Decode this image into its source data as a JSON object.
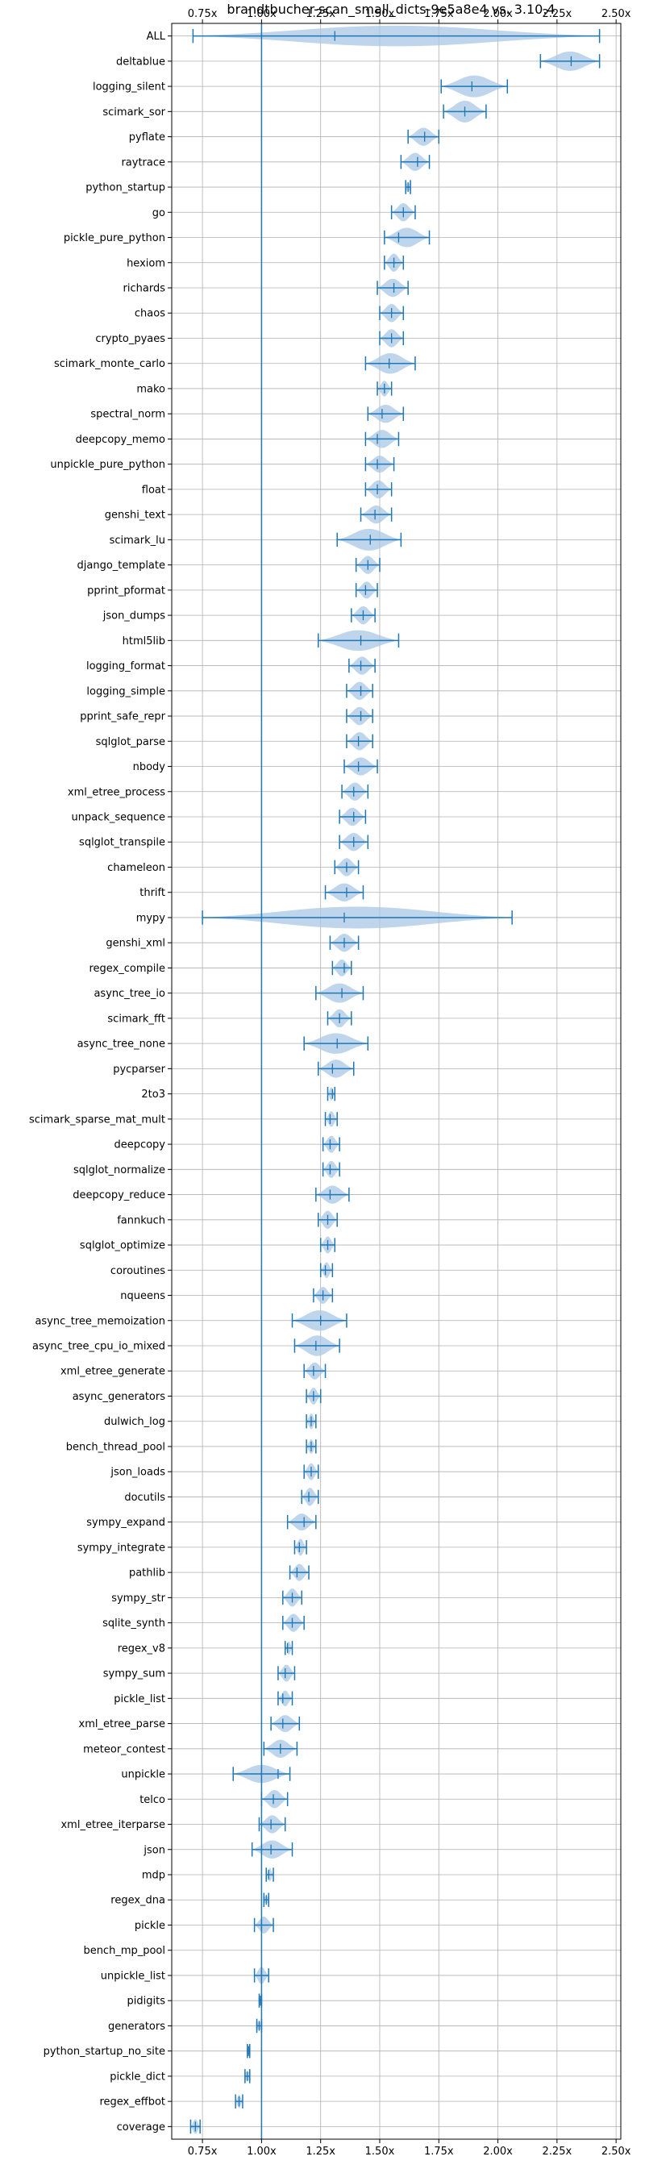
{
  "chart_data": {
    "type": "violin",
    "title": "brandtbucher-scan_small_dicts-9e5a8e4 vs. 3.10.4",
    "xlabel": "",
    "ylabel": "",
    "xlim": [
      0.62,
      2.52
    ],
    "x_ticks": [
      0.75,
      1.0,
      1.25,
      1.5,
      1.75,
      2.0,
      2.25,
      2.5
    ],
    "x_tick_labels": [
      "0.75x",
      "1.00x",
      "1.25x",
      "1.50x",
      "1.75x",
      "2.00x",
      "2.25x",
      "2.50x"
    ],
    "x_ticks_on_top_and_bottom": true,
    "reference_line": 1.0,
    "grid": true,
    "colors": {
      "body": "#a9c7e4",
      "line": "#1f77b4",
      "grid": "#b0b0b0"
    },
    "benchmarks": [
      {
        "name": "ALL",
        "min": 0.71,
        "median": 1.31,
        "max": 2.43,
        "width": 0.85
      },
      {
        "name": "deltablue",
        "min": 2.18,
        "median": 2.31,
        "max": 2.43,
        "width": 0.8
      },
      {
        "name": "logging_silent",
        "min": 1.76,
        "median": 1.89,
        "max": 2.04,
        "width": 0.9
      },
      {
        "name": "scimark_sor",
        "min": 1.77,
        "median": 1.86,
        "max": 1.95,
        "width": 0.9
      },
      {
        "name": "pyflate",
        "min": 1.62,
        "median": 1.69,
        "max": 1.75,
        "width": 0.75
      },
      {
        "name": "raytrace",
        "min": 1.59,
        "median": 1.66,
        "max": 1.71,
        "width": 0.75
      },
      {
        "name": "python_startup",
        "min": 1.61,
        "median": 1.62,
        "max": 1.63,
        "width": 0.5
      },
      {
        "name": "go",
        "min": 1.55,
        "median": 1.6,
        "max": 1.65,
        "width": 0.75
      },
      {
        "name": "pickle_pure_python",
        "min": 1.52,
        "median": 1.58,
        "max": 1.71,
        "width": 0.8
      },
      {
        "name": "hexiom",
        "min": 1.52,
        "median": 1.56,
        "max": 1.6,
        "width": 0.75
      },
      {
        "name": "richards",
        "min": 1.49,
        "median": 1.56,
        "max": 1.62,
        "width": 0.75
      },
      {
        "name": "chaos",
        "min": 1.5,
        "median": 1.55,
        "max": 1.6,
        "width": 0.75
      },
      {
        "name": "crypto_pyaes",
        "min": 1.5,
        "median": 1.55,
        "max": 1.6,
        "width": 0.75
      },
      {
        "name": "scimark_monte_carlo",
        "min": 1.44,
        "median": 1.54,
        "max": 1.65,
        "width": 0.85
      },
      {
        "name": "mako",
        "min": 1.49,
        "median": 1.52,
        "max": 1.55,
        "width": 0.65
      },
      {
        "name": "spectral_norm",
        "min": 1.45,
        "median": 1.51,
        "max": 1.6,
        "width": 0.75
      },
      {
        "name": "deepcopy_memo",
        "min": 1.44,
        "median": 1.49,
        "max": 1.58,
        "width": 0.75
      },
      {
        "name": "unpickle_pure_python",
        "min": 1.44,
        "median": 1.49,
        "max": 1.56,
        "width": 0.7
      },
      {
        "name": "float",
        "min": 1.44,
        "median": 1.49,
        "max": 1.55,
        "width": 0.75
      },
      {
        "name": "genshi_text",
        "min": 1.42,
        "median": 1.48,
        "max": 1.55,
        "width": 0.75
      },
      {
        "name": "scimark_lu",
        "min": 1.32,
        "median": 1.46,
        "max": 1.59,
        "width": 0.9
      },
      {
        "name": "django_template",
        "min": 1.4,
        "median": 1.45,
        "max": 1.5,
        "width": 0.75
      },
      {
        "name": "pprint_pformat",
        "min": 1.4,
        "median": 1.44,
        "max": 1.49,
        "width": 0.7
      },
      {
        "name": "json_dumps",
        "min": 1.38,
        "median": 1.43,
        "max": 1.48,
        "width": 0.75
      },
      {
        "name": "html5lib",
        "min": 1.24,
        "median": 1.42,
        "max": 1.58,
        "width": 0.85
      },
      {
        "name": "logging_format",
        "min": 1.37,
        "median": 1.42,
        "max": 1.48,
        "width": 0.75
      },
      {
        "name": "logging_simple",
        "min": 1.36,
        "median": 1.42,
        "max": 1.47,
        "width": 0.75
      },
      {
        "name": "pprint_safe_repr",
        "min": 1.36,
        "median": 1.42,
        "max": 1.47,
        "width": 0.75
      },
      {
        "name": "sqlglot_parse",
        "min": 1.36,
        "median": 1.41,
        "max": 1.47,
        "width": 0.75
      },
      {
        "name": "nbody",
        "min": 1.35,
        "median": 1.41,
        "max": 1.49,
        "width": 0.75
      },
      {
        "name": "xml_etree_process",
        "min": 1.34,
        "median": 1.39,
        "max": 1.45,
        "width": 0.75
      },
      {
        "name": "unpack_sequence",
        "min": 1.33,
        "median": 1.39,
        "max": 1.44,
        "width": 0.75
      },
      {
        "name": "sqlglot_transpile",
        "min": 1.33,
        "median": 1.39,
        "max": 1.45,
        "width": 0.75
      },
      {
        "name": "chameleon",
        "min": 1.31,
        "median": 1.36,
        "max": 1.41,
        "width": 0.75
      },
      {
        "name": "thrift",
        "min": 1.27,
        "median": 1.36,
        "max": 1.43,
        "width": 0.75
      },
      {
        "name": "mypy",
        "min": 0.75,
        "median": 1.35,
        "max": 2.06,
        "width": 0.9
      },
      {
        "name": "genshi_xml",
        "min": 1.29,
        "median": 1.35,
        "max": 1.41,
        "width": 0.75
      },
      {
        "name": "regex_compile",
        "min": 1.3,
        "median": 1.35,
        "max": 1.38,
        "width": 0.7
      },
      {
        "name": "async_tree_io",
        "min": 1.23,
        "median": 1.34,
        "max": 1.43,
        "width": 0.8
      },
      {
        "name": "scimark_fft",
        "min": 1.28,
        "median": 1.33,
        "max": 1.38,
        "width": 0.75
      },
      {
        "name": "async_tree_none",
        "min": 1.18,
        "median": 1.32,
        "max": 1.45,
        "width": 0.85
      },
      {
        "name": "pycparser",
        "min": 1.24,
        "median": 1.3,
        "max": 1.39,
        "width": 0.75
      },
      {
        "name": "2to3",
        "min": 1.28,
        "median": 1.3,
        "max": 1.31,
        "width": 0.55
      },
      {
        "name": "scimark_sparse_mat_mult",
        "min": 1.27,
        "median": 1.29,
        "max": 1.32,
        "width": 0.65
      },
      {
        "name": "deepcopy",
        "min": 1.26,
        "median": 1.29,
        "max": 1.33,
        "width": 0.7
      },
      {
        "name": "sqlglot_normalize",
        "min": 1.26,
        "median": 1.29,
        "max": 1.33,
        "width": 0.7
      },
      {
        "name": "deepcopy_reduce",
        "min": 1.23,
        "median": 1.29,
        "max": 1.37,
        "width": 0.75
      },
      {
        "name": "fannkuch",
        "min": 1.24,
        "median": 1.28,
        "max": 1.32,
        "width": 0.75
      },
      {
        "name": "sqlglot_optimize",
        "min": 1.25,
        "median": 1.28,
        "max": 1.31,
        "width": 0.7
      },
      {
        "name": "coroutines",
        "min": 1.25,
        "median": 1.27,
        "max": 1.3,
        "width": 0.65
      },
      {
        "name": "nqueens",
        "min": 1.22,
        "median": 1.26,
        "max": 1.3,
        "width": 0.7
      },
      {
        "name": "async_tree_memoization",
        "min": 1.13,
        "median": 1.25,
        "max": 1.36,
        "width": 0.85
      },
      {
        "name": "async_tree_cpu_io_mixed",
        "min": 1.14,
        "median": 1.23,
        "max": 1.33,
        "width": 0.85
      },
      {
        "name": "xml_etree_generate",
        "min": 1.18,
        "median": 1.22,
        "max": 1.27,
        "width": 0.7
      },
      {
        "name": "async_generators",
        "min": 1.19,
        "median": 1.22,
        "max": 1.25,
        "width": 0.7
      },
      {
        "name": "dulwich_log",
        "min": 1.19,
        "median": 1.21,
        "max": 1.23,
        "width": 0.65
      },
      {
        "name": "bench_thread_pool",
        "min": 1.19,
        "median": 1.21,
        "max": 1.23,
        "width": 0.6
      },
      {
        "name": "json_loads",
        "min": 1.18,
        "median": 1.21,
        "max": 1.24,
        "width": 0.7
      },
      {
        "name": "docutils",
        "min": 1.17,
        "median": 1.2,
        "max": 1.24,
        "width": 0.75
      },
      {
        "name": "sympy_expand",
        "min": 1.11,
        "median": 1.18,
        "max": 1.23,
        "width": 0.7
      },
      {
        "name": "sympy_integrate",
        "min": 1.14,
        "median": 1.16,
        "max": 1.19,
        "width": 0.7
      },
      {
        "name": "pathlib",
        "min": 1.12,
        "median": 1.15,
        "max": 1.2,
        "width": 0.7
      },
      {
        "name": "sympy_str",
        "min": 1.09,
        "median": 1.13,
        "max": 1.17,
        "width": 0.75
      },
      {
        "name": "sqlite_synth",
        "min": 1.09,
        "median": 1.13,
        "max": 1.18,
        "width": 0.75
      },
      {
        "name": "regex_v8",
        "min": 1.1,
        "median": 1.11,
        "max": 1.13,
        "width": 0.55
      },
      {
        "name": "sympy_sum",
        "min": 1.07,
        "median": 1.1,
        "max": 1.14,
        "width": 0.7
      },
      {
        "name": "pickle_list",
        "min": 1.07,
        "median": 1.09,
        "max": 1.13,
        "width": 0.65
      },
      {
        "name": "xml_etree_parse",
        "min": 1.04,
        "median": 1.09,
        "max": 1.16,
        "width": 0.7
      },
      {
        "name": "meteor_contest",
        "min": 1.01,
        "median": 1.08,
        "max": 1.15,
        "width": 0.75
      },
      {
        "name": "unpickle",
        "min": 0.88,
        "median": 1.07,
        "max": 1.12,
        "width": 0.75
      },
      {
        "name": "telco",
        "min": 1.0,
        "median": 1.05,
        "max": 1.11,
        "width": 0.75
      },
      {
        "name": "xml_etree_iterparse",
        "min": 0.99,
        "median": 1.04,
        "max": 1.1,
        "width": 0.75
      },
      {
        "name": "json",
        "min": 0.96,
        "median": 1.04,
        "max": 1.13,
        "width": 0.75
      },
      {
        "name": "mdp",
        "min": 1.02,
        "median": 1.03,
        "max": 1.05,
        "width": 0.55
      },
      {
        "name": "regex_dna",
        "min": 1.01,
        "median": 1.02,
        "max": 1.03,
        "width": 0.45
      },
      {
        "name": "pickle",
        "min": 0.97,
        "median": 1.0,
        "max": 1.05,
        "width": 0.7
      },
      {
        "name": "bench_mp_pool",
        "min": null,
        "median": null,
        "max": null,
        "width": 0
      },
      {
        "name": "unpickle_list",
        "min": 0.97,
        "median": 1.0,
        "max": 1.03,
        "width": 0.7
      },
      {
        "name": "pidigits",
        "min": 0.99,
        "median": 0.995,
        "max": 1.0,
        "width": 0.35
      },
      {
        "name": "generators",
        "min": 0.98,
        "median": 0.99,
        "max": 1.0,
        "width": 0.55
      },
      {
        "name": "python_startup_no_site",
        "min": 0.94,
        "median": 0.945,
        "max": 0.95,
        "width": 0.35
      },
      {
        "name": "pickle_dict",
        "min": 0.93,
        "median": 0.94,
        "max": 0.95,
        "width": 0.55
      },
      {
        "name": "regex_effbot",
        "min": 0.89,
        "median": 0.905,
        "max": 0.92,
        "width": 0.55
      },
      {
        "name": "coverage",
        "min": 0.7,
        "median": 0.72,
        "max": 0.74,
        "width": 0.6
      }
    ]
  }
}
